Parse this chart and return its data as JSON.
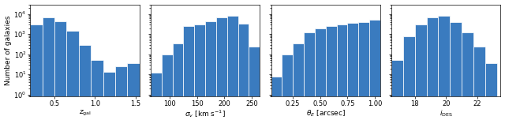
{
  "panel1": {
    "xlabel": "$z_{\\rm gal}$",
    "xlim": [
      0.2,
      1.55
    ],
    "xticks": [
      0.5,
      1.0,
      1.5
    ],
    "bin_edges": [
      0.2,
      0.35,
      0.5,
      0.65,
      0.8,
      0.95,
      1.1,
      1.25,
      1.4,
      1.55
    ],
    "counts": [
      3000,
      7000,
      4500,
      1500,
      300,
      50,
      13,
      25,
      35
    ]
  },
  "panel2": {
    "xlabel": "$\\sigma_v$ [km s$^{-1}$]",
    "xlim": [
      65,
      265
    ],
    "xticks": [
      100,
      150,
      200,
      250
    ],
    "bin_edges": [
      65,
      85,
      105,
      125,
      145,
      165,
      185,
      205,
      225,
      245,
      265
    ],
    "counts": [
      12,
      100,
      350,
      2500,
      3000,
      4500,
      7000,
      8500,
      3200,
      250
    ]
  },
  "panel3": {
    "xlabel": "$\\theta_E$ [arcsec]",
    "xlim": [
      0.05,
      1.05
    ],
    "xticks": [
      0.25,
      0.5,
      0.75,
      1.0
    ],
    "bin_edges": [
      0.05,
      0.15,
      0.25,
      0.35,
      0.45,
      0.55,
      0.65,
      0.75,
      0.85,
      0.95,
      1.05
    ],
    "counts": [
      8,
      100,
      350,
      1200,
      2000,
      2500,
      3000,
      3500,
      4000,
      5000
    ]
  },
  "panel4": {
    "xlabel": "$i_{\\rm DES}$",
    "xlim": [
      16.5,
      23.5
    ],
    "xticks": [
      18,
      20,
      22
    ],
    "bin_edges": [
      16.5,
      17.25,
      18.0,
      18.75,
      19.5,
      20.25,
      21.0,
      21.75,
      22.5,
      23.25
    ],
    "counts": [
      50,
      800,
      3000,
      7000,
      8500,
      4000,
      1200,
      250,
      35
    ]
  },
  "ylabel": "Number of galaxies",
  "bar_color": "#3a7bbf",
  "ylim": [
    0.8,
    30000
  ],
  "fig_width": 6.4,
  "fig_height": 1.57,
  "dpi": 100
}
